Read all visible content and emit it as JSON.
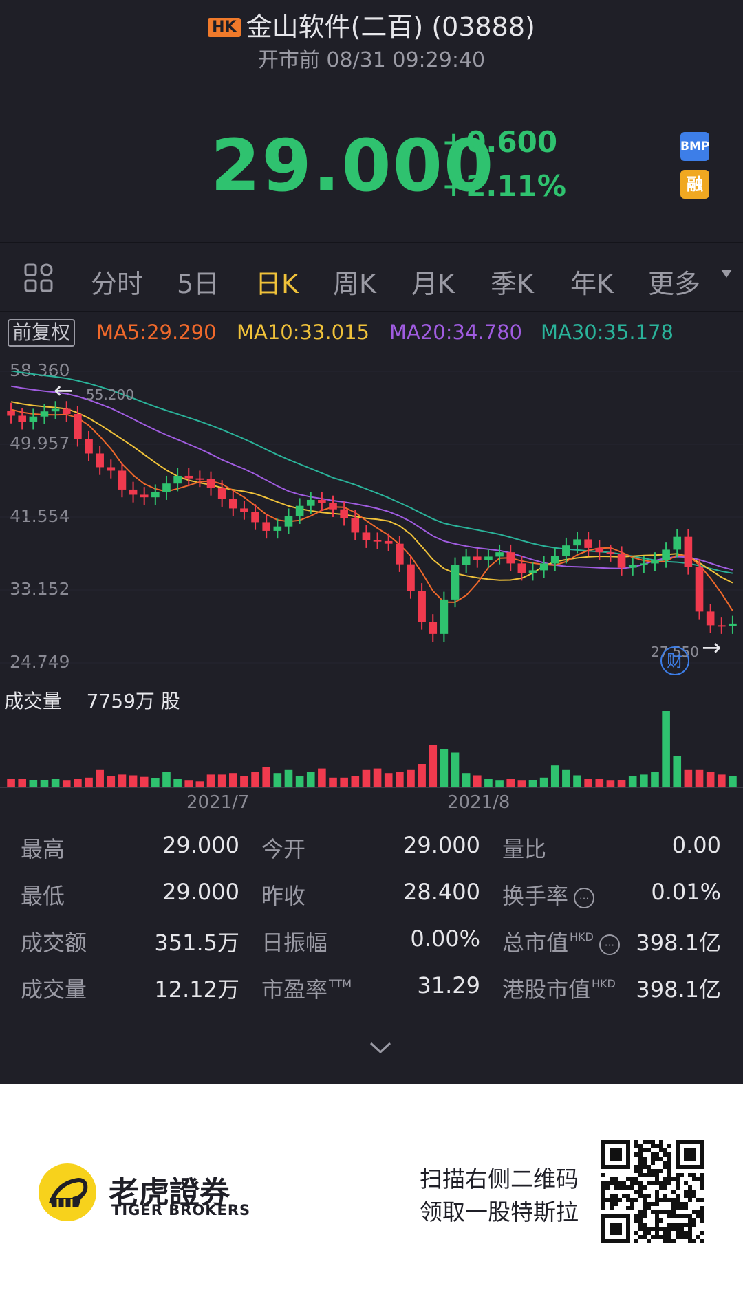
{
  "header": {
    "market_badge": "HK",
    "title": "金山软件(二百) (03888)",
    "subtitle": "开市前 08/31 09:29:40"
  },
  "quote": {
    "price": "29.000",
    "change": "+0.600",
    "change_pct": "+2.11%",
    "badge_bmp": "BMP",
    "badge_margin": "融"
  },
  "tabs": [
    {
      "label": "分时",
      "active": false
    },
    {
      "label": "5日",
      "active": false
    },
    {
      "label": "日K",
      "active": true
    },
    {
      "label": "周K",
      "active": false
    },
    {
      "label": "月K",
      "active": false
    },
    {
      "label": "季K",
      "active": false
    },
    {
      "label": "年K",
      "active": false
    },
    {
      "label": "更多",
      "active": false
    }
  ],
  "indicators": {
    "adjust": "前复权",
    "ma": [
      {
        "label": "MA5:29.290",
        "color": "#f0692b"
      },
      {
        "label": "MA10:33.015",
        "color": "#f0c23a"
      },
      {
        "label": "MA20:34.780",
        "color": "#a05ce0"
      },
      {
        "label": "MA30:35.178",
        "color": "#2ab39a"
      }
    ]
  },
  "chart_data": {
    "type": "candlestick",
    "y_ticks": [
      "58.360",
      "49.957",
      "41.554",
      "33.152",
      "24.749"
    ],
    "ylim": [
      24.749,
      58.36
    ],
    "high_marker": "55.200",
    "low_marker": "27.550",
    "earnings_icon": "财",
    "x_labels": [
      "2021/7",
      "2021/8"
    ],
    "up_color": "#2fc26f",
    "down_color": "#f03a4e",
    "closes": [
      53.2,
      52.5,
      53.1,
      53.7,
      54.0,
      53.4,
      50.5,
      48.8,
      47.2,
      46.8,
      44.6,
      44.0,
      43.7,
      44.3,
      45.3,
      46.2,
      45.9,
      45.8,
      44.8,
      43.5,
      42.4,
      42.0,
      40.8,
      39.8,
      40.3,
      41.5,
      42.7,
      43.4,
      43.0,
      42.3,
      41.3,
      39.6,
      38.7,
      38.6,
      38.3,
      35.9,
      32.8,
      29.2,
      27.8,
      31.8,
      35.8,
      36.8,
      36.4,
      36.8,
      37.3,
      36.0,
      34.9,
      35.2,
      36.0,
      36.9,
      38.1,
      38.8,
      37.8,
      37.3,
      37.1,
      35.5,
      35.8,
      36.0,
      36.4,
      37.6,
      39.1,
      35.6,
      30.4,
      28.8,
      28.7,
      29.0
    ],
    "volume_label": "成交量",
    "volume_total": "7759万 股",
    "volumes": [
      10,
      10,
      9,
      9,
      10,
      8,
      10,
      12,
      22,
      14,
      16,
      15,
      13,
      11,
      20,
      10,
      8,
      7,
      16,
      16,
      18,
      14,
      20,
      26,
      18,
      22,
      14,
      20,
      24,
      12,
      12,
      14,
      22,
      24,
      18,
      20,
      22,
      30,
      55,
      50,
      45,
      18,
      15,
      10,
      8,
      10,
      8,
      9,
      12,
      28,
      22,
      15,
      10,
      10,
      8,
      9,
      14,
      16,
      20,
      100,
      40,
      22,
      22,
      20,
      16,
      14
    ]
  },
  "stats": [
    {
      "label": "最高",
      "value": "29.000",
      "sup": "",
      "info": false
    },
    {
      "label": "今开",
      "value": "29.000",
      "sup": "",
      "info": false
    },
    {
      "label": "量比",
      "value": "0.00",
      "sup": "",
      "info": false
    },
    {
      "label": "最低",
      "value": "29.000",
      "sup": "",
      "info": false
    },
    {
      "label": "昨收",
      "value": "28.400",
      "sup": "",
      "info": false
    },
    {
      "label": "换手率",
      "value": "0.01%",
      "sup": "",
      "info": true
    },
    {
      "label": "成交额",
      "value": "351.5万",
      "sup": "",
      "info": false
    },
    {
      "label": "日振幅",
      "value": "0.00%",
      "sup": "",
      "info": false
    },
    {
      "label": "总市值",
      "value": "398.1亿",
      "sup": "HKD",
      "info": true
    },
    {
      "label": "成交量",
      "value": "12.12万",
      "sup": "",
      "info": false
    },
    {
      "label": "市盈率",
      "value": "31.29",
      "sup": "TTM",
      "info": false
    },
    {
      "label": "港股市值",
      "value": "398.1亿",
      "sup": "HKD",
      "info": false
    }
  ],
  "footer": {
    "brand_cn": "老虎證券",
    "brand_en": "TIGER BROKERS",
    "promo_line1": "扫描右侧二维码",
    "promo_line2": "领取一股特斯拉"
  }
}
